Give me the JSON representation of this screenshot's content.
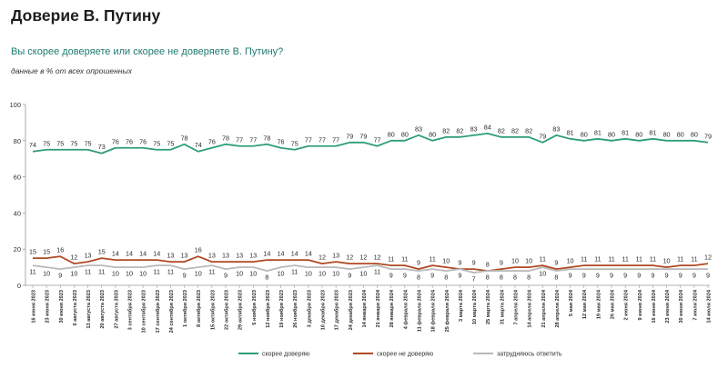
{
  "header": {
    "title": "Доверие В. Путину",
    "question": "Вы скорее доверяете или скорее не доверяете В. Путину?",
    "note": "данные в % от всех опрошенных"
  },
  "chart_data": {
    "type": "line",
    "title": "Доверие В. Путину",
    "subtitle": "Вы скорее доверяете или скорее не доверяете В. Путину?",
    "ylim": [
      0,
      100
    ],
    "yticks": [
      0,
      20,
      40,
      60,
      80,
      100
    ],
    "grid": false,
    "legend_placement": "bottom",
    "categories": [
      "16 июня 2023",
      "23 июня 2023",
      "30 июня 2023",
      "6 августа 2023",
      "13 августа 2023",
      "20 августа 2023",
      "27 августа 2023",
      "3 сентября 2023",
      "10 сентября 2023",
      "17 сентября 2023",
      "24 сентября 2023",
      "1 октября 2023",
      "8 октября 2023",
      "15 октября 2023",
      "22 октября 2023",
      "29 октября 2023",
      "5 ноября 2023",
      "12 ноября 2023",
      "19 ноября 2023",
      "26 ноября 2023",
      "3 декабря 2023",
      "10 декабря 2023",
      "17 декабря 2023",
      "24 декабря 2023",
      "14 января 2024",
      "21 января 2024",
      "28 января 2024",
      "4 февраля 2024",
      "11 февраля 2024",
      "18 февраля 2024",
      "25 февраля 2024",
      "3 марта 2024",
      "10 марта 2024",
      "25 марта 2024",
      "31 марта 2024",
      "7 апреля 2024",
      "14 апреля 2024",
      "21 апреля 2024",
      "28 апреля 2024",
      "5 мая 2024",
      "12 мая 2024",
      "19 мая 2024",
      "26 мая 2024",
      "2 июня 2024",
      "9 июня 2024",
      "16 июня 2024",
      "23 июня 2024",
      "30 июня 2024",
      "7 июля 2024",
      "14 июля 2024"
    ],
    "series": [
      {
        "name": "скорее доверяю",
        "color": "#2e9e77",
        "label_position": "above",
        "values": [
          74,
          75,
          75,
          75,
          75,
          73,
          76,
          76,
          76,
          75,
          75,
          78,
          74,
          76,
          78,
          77,
          77,
          78,
          76,
          75,
          77,
          77,
          77,
          79,
          79,
          77,
          80,
          80,
          83,
          80,
          82,
          82,
          83,
          84,
          82,
          82,
          82,
          79,
          83,
          81,
          80,
          81,
          80,
          81,
          80,
          81,
          80,
          80,
          80,
          79
        ]
      },
      {
        "name": "скорее не доверяю",
        "color": "#b04a22",
        "label_position": "above",
        "values": [
          15,
          15,
          16,
          12,
          13,
          15,
          14,
          14,
          14,
          14,
          13,
          13,
          16,
          13,
          13,
          13,
          13,
          14,
          14,
          14,
          14,
          12,
          13,
          12,
          12,
          12,
          11,
          11,
          9,
          11,
          10,
          9,
          9,
          8,
          9,
          10,
          10,
          11,
          9,
          10,
          11,
          11,
          11,
          11,
          11,
          11,
          10,
          11,
          11,
          12
        ]
      },
      {
        "name": "затрудняюсь ответить",
        "color": "#b9b9b9",
        "label_position": "below",
        "values": [
          11,
          10,
          9,
          10,
          11,
          11,
          10,
          10,
          10,
          11,
          11,
          9,
          10,
          11,
          9,
          10,
          10,
          8,
          10,
          11,
          10,
          10,
          10,
          9,
          10,
          11,
          9,
          9,
          8,
          9,
          8,
          9,
          7,
          8,
          8,
          8,
          8,
          10,
          8,
          9,
          9,
          9,
          9,
          9,
          9,
          9,
          9,
          9,
          9,
          9
        ]
      }
    ]
  }
}
